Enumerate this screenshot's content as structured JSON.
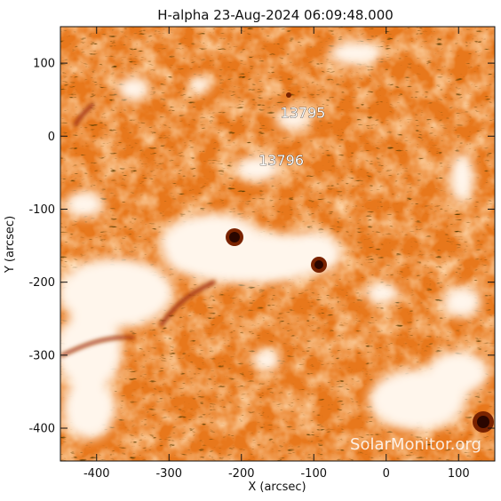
{
  "title": "H-alpha 23-Aug-2024 06:09:48.000",
  "x_axis": {
    "label": "X (arcsec)",
    "min": -450,
    "max": 150,
    "ticks": [
      {
        "value": -400,
        "label": "-400"
      },
      {
        "value": -300,
        "label": "-300"
      },
      {
        "value": -200,
        "label": "-200"
      },
      {
        "value": -100,
        "label": "-100"
      },
      {
        "value": 0,
        "label": "0"
      },
      {
        "value": 100,
        "label": "100"
      }
    ]
  },
  "y_axis": {
    "label": "Y (arcsec)",
    "min": -445,
    "max": 150,
    "ticks": [
      {
        "value": 100,
        "label": "100"
      },
      {
        "value": 0,
        "label": "0"
      },
      {
        "value": -100,
        "label": "-100"
      },
      {
        "value": -200,
        "label": "-200"
      },
      {
        "value": -300,
        "label": "-300"
      },
      {
        "value": -400,
        "label": "-400"
      }
    ]
  },
  "regions": [
    {
      "label": "13795",
      "x": -115,
      "y": 25
    },
    {
      "label": "13796",
      "x": -145,
      "y": -40
    }
  ],
  "watermark": "SolarMonitor.org",
  "colors": {
    "background": "#e8781c",
    "plage": "#fff3e6",
    "sunspot": "#5a1200",
    "filament": "#b23a00",
    "fibril": "#2a0f00"
  }
}
